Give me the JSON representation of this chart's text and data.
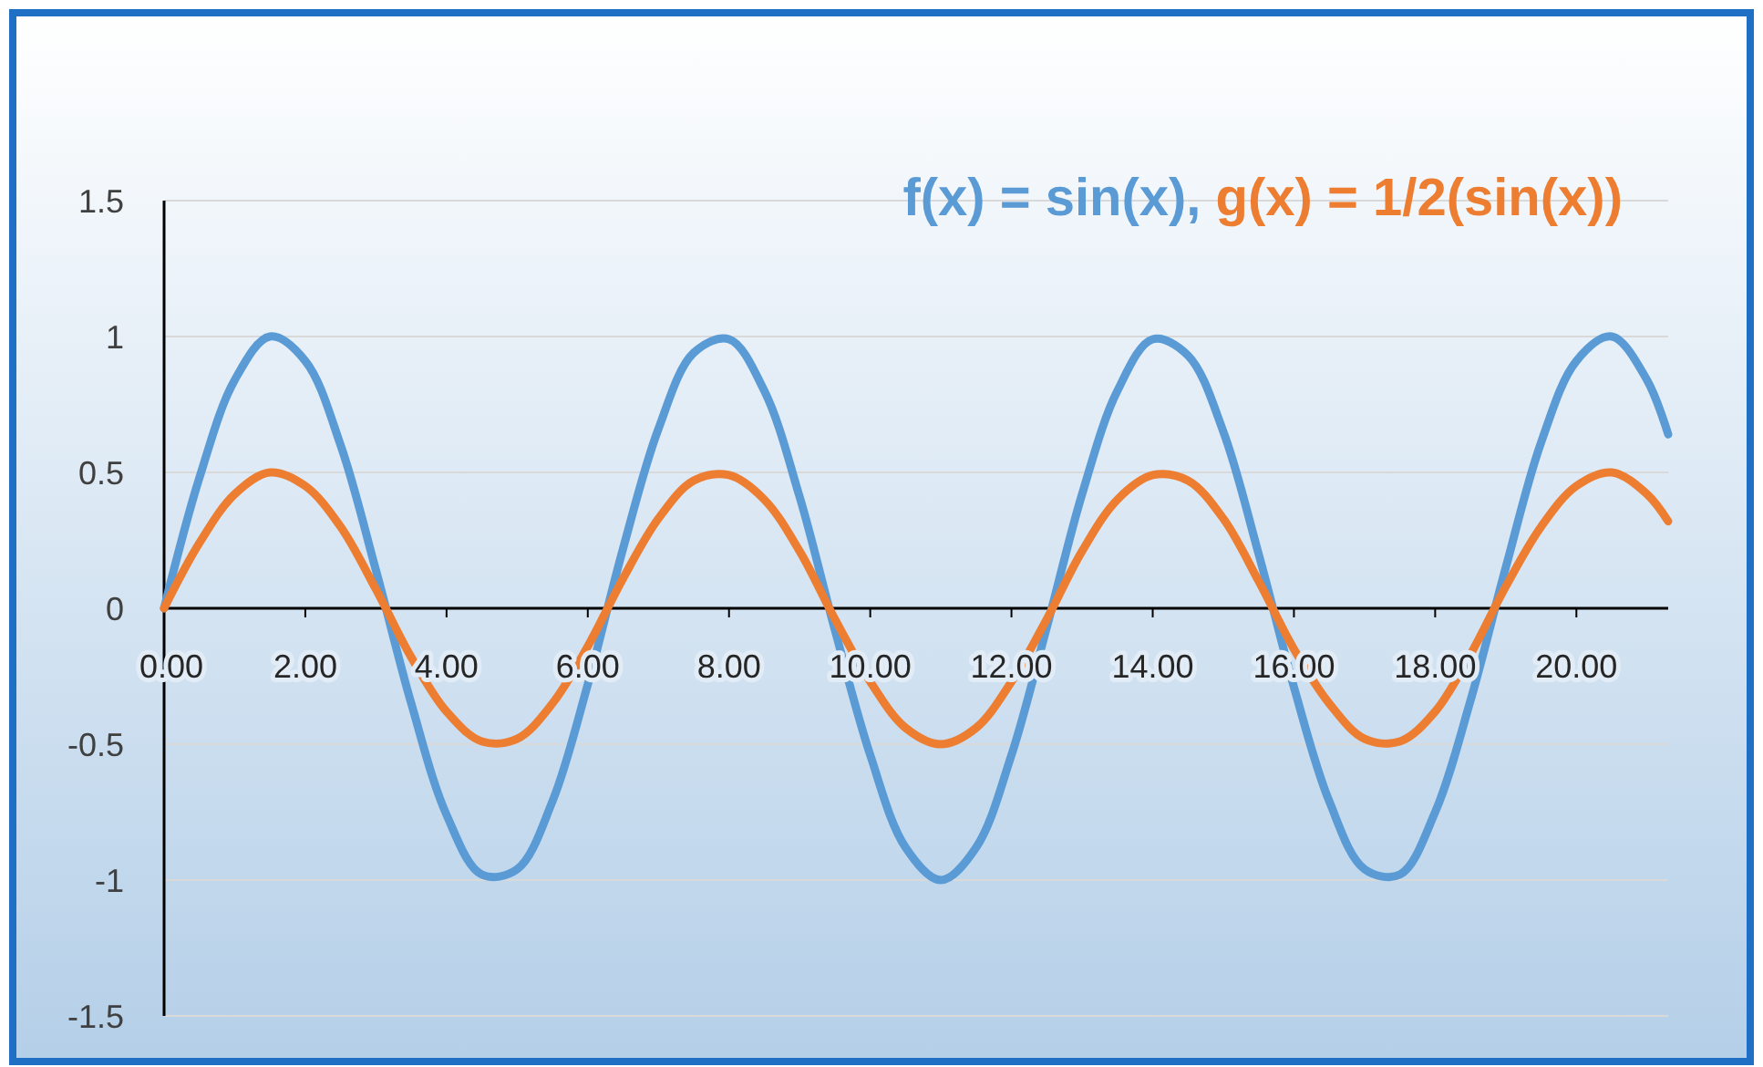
{
  "chart_data": {
    "type": "line",
    "legend": "top right",
    "grid": "y",
    "xlim": [
      0,
      21.3
    ],
    "ylim": [
      -1.5,
      1.5
    ],
    "xticks": [
      {
        "value": 0,
        "label": "0.00"
      },
      {
        "value": 2,
        "label": "2.00"
      },
      {
        "value": 4,
        "label": "4.00"
      },
      {
        "value": 6,
        "label": "6.00"
      },
      {
        "value": 8,
        "label": "8.00"
      },
      {
        "value": 10,
        "label": "10.00"
      },
      {
        "value": 12,
        "label": "12.00"
      },
      {
        "value": 14,
        "label": "14.00"
      },
      {
        "value": 16,
        "label": "16.00"
      },
      {
        "value": 18,
        "label": "18.00"
      },
      {
        "value": 20,
        "label": "20.00"
      }
    ],
    "yticks": [
      -1.5,
      -1,
      -0.5,
      0,
      0.5,
      1,
      1.5
    ],
    "x": [
      0,
      0.5,
      1,
      1.5,
      2,
      2.5,
      3,
      3.5,
      4,
      4.5,
      5,
      5.5,
      6,
      6.5,
      7,
      7.5,
      8,
      8.5,
      9,
      9.5,
      10,
      10.5,
      11,
      11.5,
      12,
      12.5,
      13,
      13.5,
      14,
      14.5,
      15,
      15.5,
      16,
      16.5,
      17,
      17.5,
      18,
      18.5,
      19,
      19.5,
      20,
      20.5,
      21,
      21.3
    ],
    "series": [
      {
        "name": "f(x) = sin(x),",
        "color": "#5b9bd5",
        "values": [
          0,
          0.48,
          0.84,
          1,
          0.91,
          0.6,
          0.14,
          -0.35,
          -0.76,
          -0.98,
          -0.96,
          -0.71,
          -0.28,
          0.22,
          0.66,
          0.94,
          0.99,
          0.8,
          0.41,
          -0.08,
          -0.54,
          -0.88,
          -1,
          -0.88,
          -0.54,
          -0.07,
          0.42,
          0.8,
          0.99,
          0.93,
          0.65,
          0.2,
          -0.29,
          -0.71,
          -0.96,
          -0.98,
          -0.75,
          -0.34,
          0.15,
          0.61,
          0.91,
          1,
          0.84,
          0.64
        ]
      },
      {
        "name": "g(x) = 1/2(sin(x))",
        "color": "#ed7d31",
        "values": [
          0,
          0.24,
          0.42,
          0.5,
          0.45,
          0.3,
          0.07,
          -0.18,
          -0.38,
          -0.49,
          -0.48,
          -0.35,
          -0.14,
          0.11,
          0.33,
          0.47,
          0.49,
          0.4,
          0.21,
          -0.04,
          -0.27,
          -0.44,
          -0.5,
          -0.44,
          -0.27,
          -0.04,
          0.21,
          0.4,
          0.49,
          0.47,
          0.33,
          0.1,
          -0.15,
          -0.35,
          -0.48,
          -0.49,
          -0.38,
          -0.17,
          0.08,
          0.3,
          0.45,
          0.5,
          0.42,
          0.32
        ]
      }
    ]
  }
}
